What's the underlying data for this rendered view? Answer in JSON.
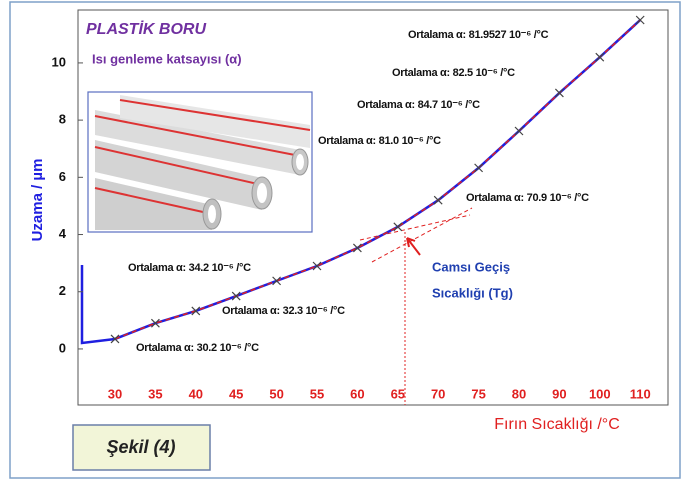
{
  "chart_data": {
    "type": "line",
    "title": "PLASTİK BORU",
    "subtitle": "Isı genleme katsayısı (α)",
    "y_label": "Uzama / µm",
    "x_label": "Fırın Sıcaklığı /°C",
    "categories": [
      "30",
      "35",
      "40",
      "45",
      "50",
      "55",
      "60",
      "65",
      "70",
      "75",
      "80",
      "90",
      "100",
      "110"
    ],
    "series": [
      {
        "color": "#1f1fe0",
        "fit_color": "#e02020",
        "values": [
          0.35,
          0.9,
          1.33,
          1.85,
          2.38,
          2.9,
          3.53,
          4.27,
          5.2,
          6.33,
          7.62,
          8.95,
          10.2,
          11.5
        ]
      }
    ],
    "ylim": [
      -1.96,
      11.85
    ],
    "yticks": [
      0,
      2,
      4,
      6,
      8,
      10
    ],
    "annotations": [
      "Ortalama α: 81.9527 10⁻⁶ /°C",
      "Ortalama α: 82.5 10⁻⁶ /°C",
      "Ortalama α: 84.7 10⁻⁶ /°C",
      "Ortalama α: 81.0 10⁻⁶ /°C",
      "Ortalama α: 70.9 10⁻⁶ /°C",
      "Ortalama α: 34.2 10⁻⁶ /°C",
      "Ortalama α: 32.3 10⁻⁶ /°C",
      "Ortalama α: 30.2 10⁻⁶ /°C"
    ],
    "tg_label": [
      "Camsı Geçiş",
      "Sıcaklığı (Tg)"
    ],
    "figure_label": "Şekil (4)"
  }
}
